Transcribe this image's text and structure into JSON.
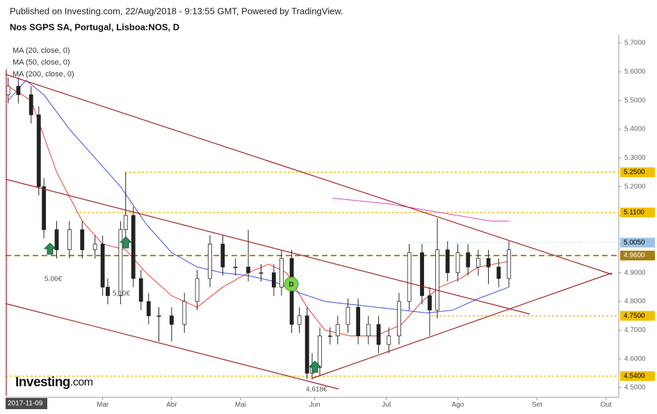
{
  "header": {
    "published": "Published on Investing.com, 22/Aug/2018 - 9:13:55 GMT, Powered by TradingView.",
    "symbol": "Nos SGPS SA, Portugal, Lisboa:NOS, D"
  },
  "chart_data": {
    "type": "candlestick",
    "legend": [
      "MA (20, close, 0)",
      "MA (50, close, 0)",
      "MA (200, close, 0)"
    ],
    "x": [
      1,
      5,
      10,
      13,
      15,
      20,
      25,
      30,
      35,
      38,
      40,
      45,
      47,
      50,
      53,
      56,
      60,
      65,
      70,
      75,
      80,
      85,
      90,
      95,
      100,
      105,
      108,
      112,
      115,
      118,
      120,
      123,
      127,
      130,
      134,
      138,
      142,
      146,
      150,
      154,
      158,
      163,
      166,
      169,
      173,
      177,
      181,
      185,
      189,
      193,
      197
    ],
    "open": [
      5.52,
      5.55,
      5.52,
      5.45,
      5.2,
      5.05,
      4.98,
      5.05,
      4.98,
      5.0,
      4.85,
      4.82,
      5.05,
      5.1,
      4.88,
      4.8,
      4.75,
      4.75,
      4.72,
      4.8,
      4.88,
      5.0,
      4.92,
      4.92,
      4.9,
      4.9,
      4.85,
      4.95,
      4.72,
      4.75,
      4.55,
      4.57,
      4.68,
      4.68,
      4.72,
      4.78,
      4.68,
      4.72,
      4.65,
      4.68,
      4.8,
      4.97,
      4.82,
      4.77,
      4.98,
      4.9,
      4.97,
      4.92,
      4.95,
      4.92,
      4.88
    ],
    "high": [
      5.58,
      5.58,
      5.55,
      5.48,
      5.23,
      5.08,
      5.08,
      5.08,
      5.03,
      5.03,
      4.88,
      5.08,
      5.25,
      5.13,
      4.91,
      4.83,
      4.78,
      4.78,
      4.83,
      4.91,
      5.03,
      5.03,
      4.95,
      5.05,
      4.93,
      4.93,
      4.98,
      4.98,
      4.78,
      4.78,
      4.62,
      4.71,
      4.71,
      4.75,
      4.81,
      4.81,
      4.75,
      4.75,
      4.71,
      4.83,
      5.0,
      5.0,
      4.85,
      5.09,
      5.01,
      5.0,
      5.0,
      4.98,
      4.98,
      4.95,
      5.01
    ],
    "low": [
      5.49,
      5.49,
      5.42,
      5.17,
      5.02,
      4.95,
      4.95,
      4.95,
      4.95,
      4.82,
      4.79,
      4.79,
      5.02,
      4.85,
      4.77,
      4.72,
      4.66,
      4.66,
      4.69,
      4.77,
      4.85,
      4.89,
      4.89,
      4.87,
      4.87,
      4.82,
      4.82,
      4.69,
      4.69,
      4.53,
      4.53,
      4.54,
      4.65,
      4.65,
      4.69,
      4.65,
      4.65,
      4.62,
      4.62,
      4.65,
      4.77,
      4.79,
      4.68,
      4.74,
      4.87,
      4.87,
      4.89,
      4.89,
      4.86,
      4.85,
      4.85
    ],
    "close": [
      5.55,
      5.52,
      5.45,
      5.2,
      5.05,
      4.98,
      5.05,
      4.98,
      5.0,
      4.85,
      4.82,
      5.05,
      5.1,
      4.88,
      4.8,
      4.75,
      4.75,
      4.72,
      4.8,
      4.88,
      5.0,
      4.92,
      4.92,
      4.9,
      4.9,
      4.85,
      4.95,
      4.72,
      4.75,
      4.55,
      4.57,
      4.68,
      4.68,
      4.72,
      4.78,
      4.68,
      4.72,
      4.65,
      4.68,
      4.8,
      4.97,
      4.82,
      4.77,
      4.98,
      4.9,
      4.97,
      4.92,
      4.95,
      4.92,
      4.88,
      4.98
    ],
    "series": [
      {
        "name": "MA (20, close, 0)",
        "color": "#e8392f",
        "x": [
          1,
          10,
          20,
          30,
          38,
          47,
          55,
          65,
          75,
          85,
          95,
          103,
          110,
          118,
          125,
          135,
          145,
          155,
          163,
          170,
          178,
          185,
          197
        ],
        "values": [
          5.55,
          5.5,
          5.25,
          5.08,
          5.0,
          4.98,
          4.9,
          4.82,
          4.78,
          4.85,
          4.9,
          4.93,
          4.9,
          4.78,
          4.7,
          4.68,
          4.68,
          4.72,
          4.8,
          4.85,
          4.88,
          4.92,
          4.94
        ]
      },
      {
        "name": "MA (50, close, 0)",
        "color": "#3b4fd8",
        "x": [
          1,
          8,
          15,
          25,
          35,
          45,
          55,
          65,
          75,
          85,
          95,
          105,
          115,
          125,
          135,
          145,
          155,
          165,
          175,
          185,
          197
        ],
        "values": [
          5.5,
          5.57,
          5.52,
          5.4,
          5.3,
          5.2,
          5.07,
          4.97,
          4.92,
          4.9,
          4.89,
          4.87,
          4.83,
          4.8,
          4.79,
          4.78,
          4.77,
          4.76,
          4.77,
          4.81,
          4.85
        ]
      },
      {
        "name": "MA (200, close, 0)",
        "color": "#d53fd6",
        "x": [
          128,
          150,
          170,
          190,
          197
        ],
        "values": [
          5.16,
          5.14,
          5.11,
          5.08,
          5.08
        ]
      }
    ],
    "xlim": [
      0,
      240
    ],
    "xticks": [
      {
        "value": 0,
        "label": "2017-11-09"
      },
      {
        "value": 38,
        "label": "Mar"
      },
      {
        "value": 65,
        "label": "Abr"
      },
      {
        "value": 92,
        "label": "Mai"
      },
      {
        "value": 121,
        "label": "Jun"
      },
      {
        "value": 149,
        "label": "Jul"
      },
      {
        "value": 177,
        "label": "Ago"
      },
      {
        "value": 208,
        "label": "Set"
      },
      {
        "value": 235,
        "label": "Out"
      }
    ],
    "ylim": [
      4.5,
      5.7
    ],
    "yticks": [
      {
        "value": 4.5,
        "label": "4.5000"
      },
      {
        "value": 4.6,
        "label": "4.6000"
      },
      {
        "value": 4.7,
        "label": "4.7000"
      },
      {
        "value": 4.8,
        "label": "4.8000"
      },
      {
        "value": 4.9,
        "label": "4.9000"
      },
      {
        "value": 5.0,
        "label": "5.0000"
      },
      {
        "value": 5.1,
        "label": "5.1000"
      },
      {
        "value": 5.2,
        "label": "5.2000"
      },
      {
        "value": 5.3,
        "label": "5.3000"
      },
      {
        "value": 5.4,
        "label": "5.4000"
      },
      {
        "value": 5.5,
        "label": "5.5000"
      },
      {
        "value": 5.6,
        "label": "5.6000"
      },
      {
        "value": 5.7,
        "label": "5.7000"
      }
    ],
    "levels": [
      {
        "value": 5.25,
        "label": "5.2500",
        "color": "#f0c000"
      },
      {
        "value": 5.11,
        "label": "5.1100",
        "color": "#f0c000"
      },
      {
        "value": 4.75,
        "label": "4.7500",
        "color": "#f0c000"
      },
      {
        "value": 4.54,
        "label": "4.5400",
        "color": "#f0c000"
      },
      {
        "value": 4.96,
        "label": "4.9600",
        "color": "#a57f12"
      },
      {
        "value": 5.005,
        "label": "5.0050",
        "color": "#9cc3e6"
      }
    ],
    "annotations": [
      "5,06€",
      "5,10€",
      "4,618€",
      "D"
    ],
    "logo": "Investing",
    "logo_suffix": ".com"
  }
}
